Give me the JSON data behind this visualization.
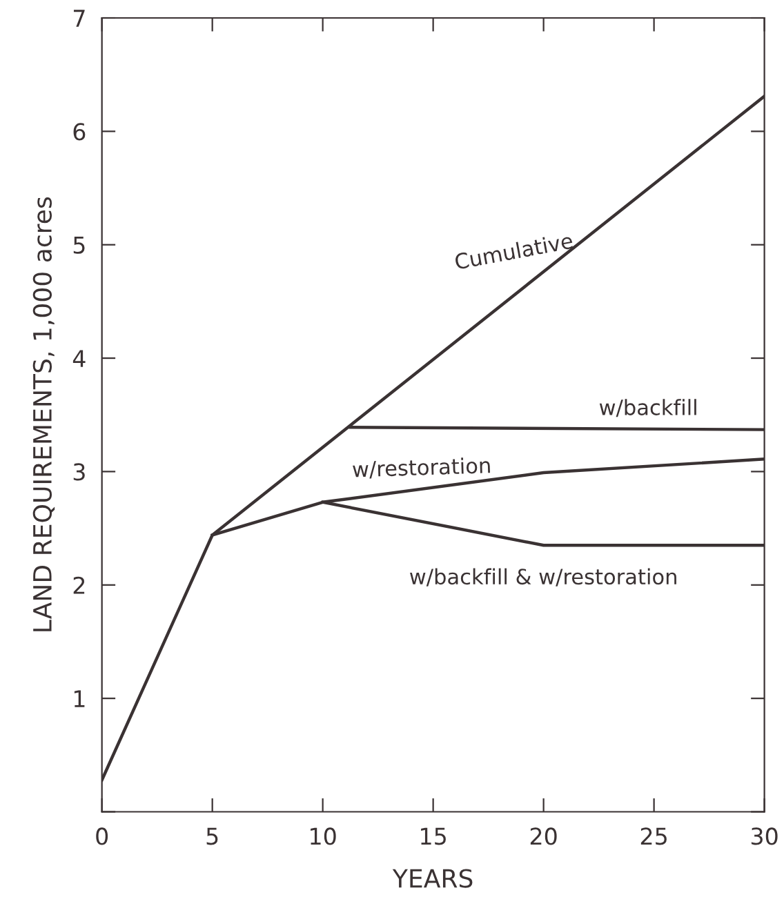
{
  "chart_data": {
    "type": "line",
    "xlabel": "YEARS",
    "ylabel": "LAND REQUIREMENTS, 1,000 acres",
    "xlim": [
      0,
      30
    ],
    "ylim": [
      0,
      7
    ],
    "xticks": [
      0,
      5,
      10,
      15,
      20,
      25,
      30
    ],
    "yticks": [
      {
        "value": 0,
        "label": null
      },
      1,
      2,
      3,
      4,
      5,
      6,
      7
    ],
    "grid": false,
    "legend": false,
    "marker": "none",
    "line_style": "solid",
    "series": [
      {
        "name": "Cumulative",
        "color": "#3a3233",
        "x": [
          0,
          5,
          30
        ],
        "values": [
          0.28,
          2.44,
          6.31
        ]
      },
      {
        "name": "w/backfill",
        "color": "#3a3233",
        "x": [
          11.25,
          30
        ],
        "values": [
          3.39,
          3.37
        ]
      },
      {
        "name": "w/restoration",
        "color": "#3a3233",
        "x": [
          5,
          10,
          20,
          30
        ],
        "values": [
          2.44,
          2.73,
          2.99,
          3.11
        ]
      },
      {
        "name": "w/backfill & w/restoration",
        "color": "#3a3233",
        "x": [
          10,
          20,
          30
        ],
        "values": [
          2.73,
          2.35,
          2.35
        ]
      }
    ]
  }
}
